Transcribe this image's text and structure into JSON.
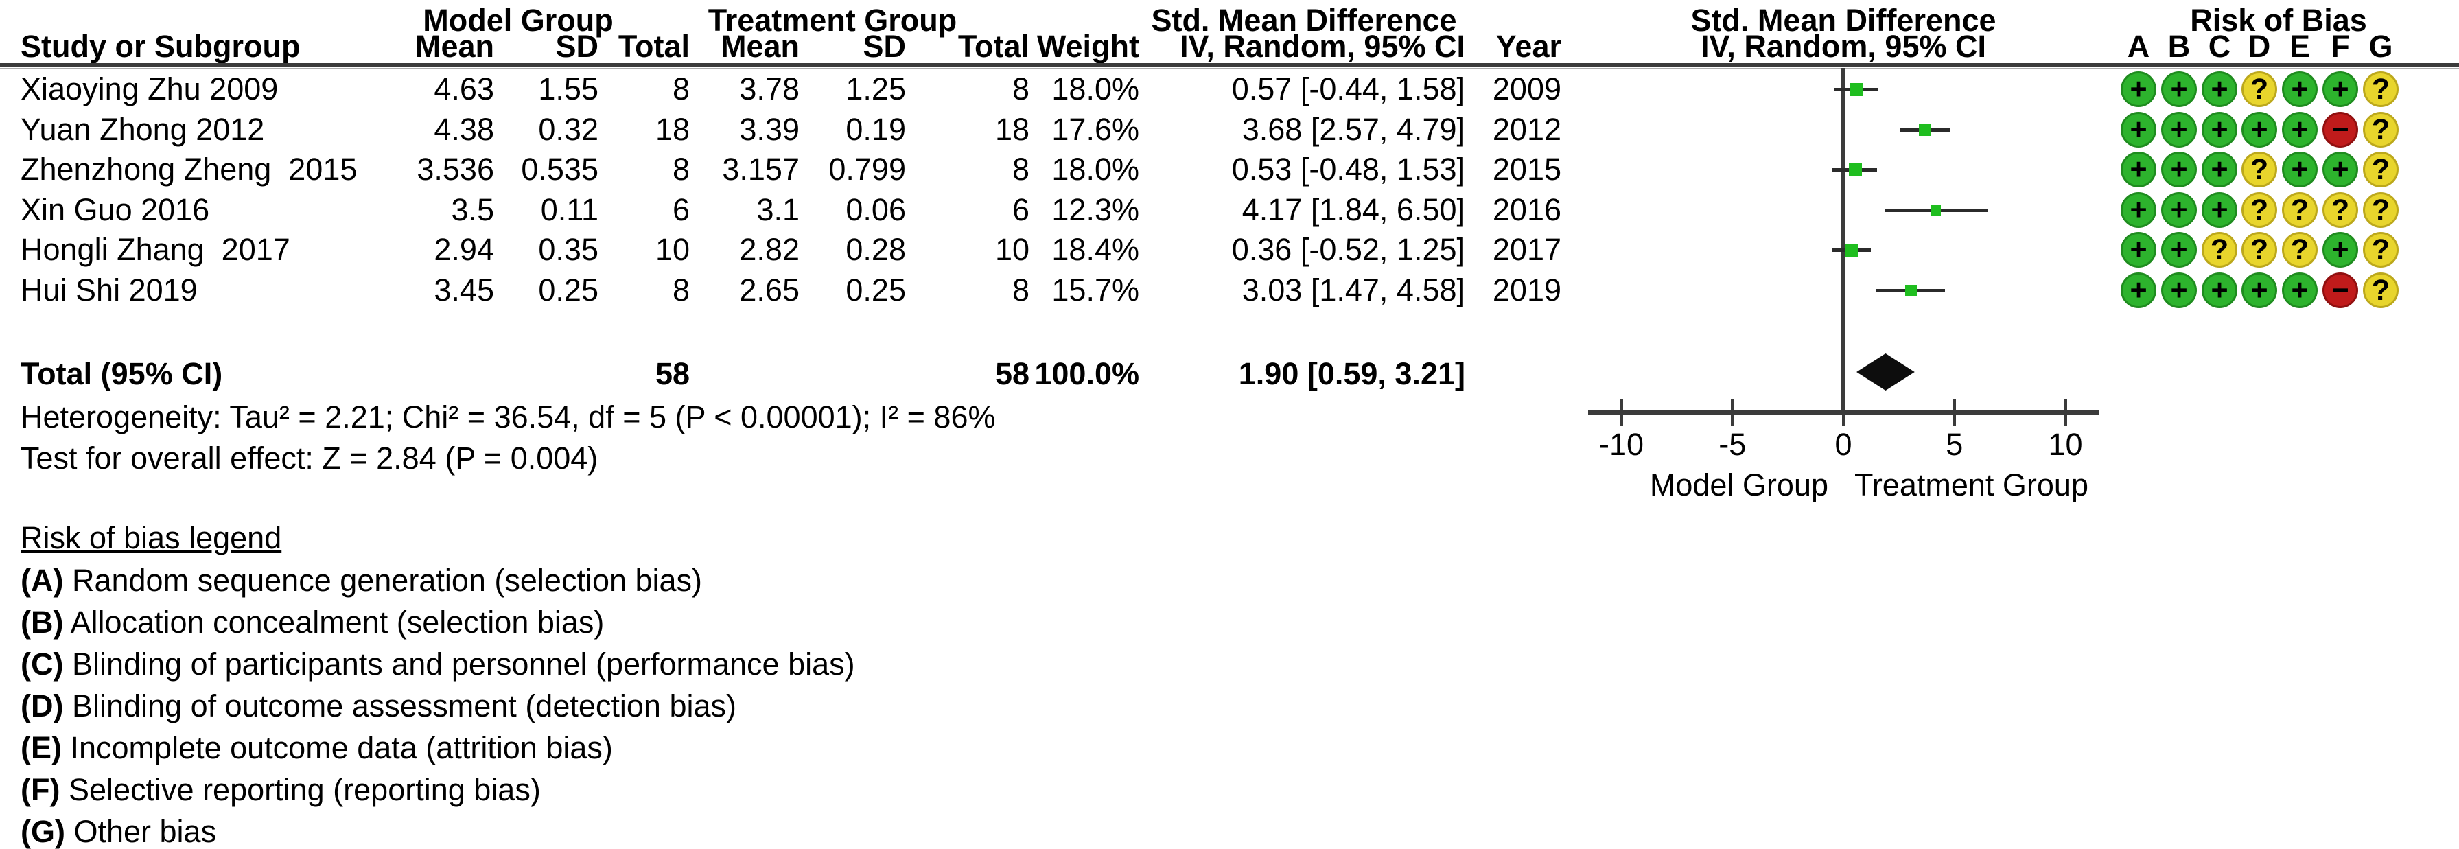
{
  "table": {
    "group_headers": {
      "model": "Model Group",
      "treatment": "Treatment Group",
      "smd": "Std. Mean Difference"
    },
    "column_headers": {
      "study": "Study or Subgroup",
      "mean_model": "Mean",
      "sd_model": "SD",
      "total_model": "Total",
      "mean_treatment": "Mean",
      "sd_treatment": "SD",
      "total_treatment": "Total",
      "weight": "Weight",
      "iv_random": "IV, Random, 95% CI",
      "year": "Year"
    },
    "rows": [
      {
        "study": "Xiaoying Zhu 2009",
        "m_mean": "4.63",
        "m_sd": "1.55",
        "m_total": "8",
        "t_mean": "3.78",
        "t_sd": "1.25",
        "t_total": "8",
        "weight": "18.0%",
        "ci": "0.57 [-0.44, 1.58]",
        "year": "2009"
      },
      {
        "study": "Yuan Zhong 2012",
        "m_mean": "4.38",
        "m_sd": "0.32",
        "m_total": "18",
        "t_mean": "3.39",
        "t_sd": "0.19",
        "t_total": "18",
        "weight": "17.6%",
        "ci": "3.68 [2.57, 4.79]",
        "year": "2012"
      },
      {
        "study": "Zhenzhong Zheng  2015",
        "m_mean": "3.536",
        "m_sd": "0.535",
        "m_total": "8",
        "t_mean": "3.157",
        "t_sd": "0.799",
        "t_total": "8",
        "weight": "18.0%",
        "ci": "0.53 [-0.48, 1.53]",
        "year": "2015"
      },
      {
        "study": "Xin Guo 2016",
        "m_mean": "3.5",
        "m_sd": "0.11",
        "m_total": "6",
        "t_mean": "3.1",
        "t_sd": "0.06",
        "t_total": "6",
        "weight": "12.3%",
        "ci": "4.17 [1.84, 6.50]",
        "year": "2016"
      },
      {
        "study": "Hongli Zhang  2017",
        "m_mean": "2.94",
        "m_sd": "0.35",
        "m_total": "10",
        "t_mean": "2.82",
        "t_sd": "0.28",
        "t_total": "10",
        "weight": "18.4%",
        "ci": "0.36 [-0.52, 1.25]",
        "year": "2017"
      },
      {
        "study": "Hui Shi 2019",
        "m_mean": "3.45",
        "m_sd": "0.25",
        "m_total": "8",
        "t_mean": "2.65",
        "t_sd": "0.25",
        "t_total": "8",
        "weight": "15.7%",
        "ci": "3.03 [1.47, 4.58]",
        "year": "2019"
      }
    ],
    "total": {
      "label": "Total (95% CI)",
      "m_total": "58",
      "t_total": "58",
      "weight": "100.0%",
      "ci": "1.90 [0.59, 3.21]"
    },
    "heterogeneity": "Heterogeneity: Tau² = 2.21; Chi² = 36.54, df = 5 (P < 0.00001); I² = 86%",
    "overall_effect": "Test for overall effect: Z = 2.84 (P = 0.004)"
  },
  "forest": {
    "header_line1": "Std. Mean Difference",
    "header_line2": "IV, Random, 95% CI",
    "axis_ticks": [
      "-10",
      "-5",
      "0",
      "5",
      "10"
    ],
    "axis_tick_values": [
      -10,
      -5,
      0,
      5,
      10
    ],
    "axis_label_left": "Model Group",
    "axis_label_right": "Treatment Group",
    "points": [
      {
        "est": 0.57,
        "lo": -0.44,
        "hi": 1.58,
        "weight": 18.0
      },
      {
        "est": 3.68,
        "lo": 2.57,
        "hi": 4.79,
        "weight": 17.6
      },
      {
        "est": 0.53,
        "lo": -0.48,
        "hi": 1.53,
        "weight": 18.0
      },
      {
        "est": 4.17,
        "lo": 1.84,
        "hi": 6.5,
        "weight": 12.3
      },
      {
        "est": 0.36,
        "lo": -0.52,
        "hi": 1.25,
        "weight": 18.4
      },
      {
        "est": 3.03,
        "lo": 1.47,
        "hi": 4.58,
        "weight": 15.7
      }
    ],
    "diamond": {
      "est": 1.9,
      "lo": 0.59,
      "hi": 3.21
    }
  },
  "risk_of_bias": {
    "header": "Risk of Bias",
    "columns": [
      "A",
      "B",
      "C",
      "D",
      "E",
      "F",
      "G"
    ],
    "rows": [
      [
        "+",
        "+",
        "+",
        "?",
        "+",
        "+",
        "?"
      ],
      [
        "+",
        "+",
        "+",
        "+",
        "+",
        "−",
        "?"
      ],
      [
        "+",
        "+",
        "+",
        "?",
        "+",
        "+",
        "?"
      ],
      [
        "+",
        "+",
        "+",
        "?",
        "?",
        "?",
        "?"
      ],
      [
        "+",
        "+",
        "?",
        "?",
        "?",
        "+",
        "?"
      ],
      [
        "+",
        "+",
        "+",
        "+",
        "+",
        "−",
        "?"
      ]
    ]
  },
  "legend": {
    "title": "Risk of bias legend",
    "items": [
      {
        "key": "(A)",
        "text": " Random sequence generation (selection bias)"
      },
      {
        "key": "(B)",
        "text": " Allocation concealment (selection bias)"
      },
      {
        "key": "(C)",
        "text": " Blinding of participants and personnel (performance bias)"
      },
      {
        "key": "(D)",
        "text": " Blinding of outcome assessment (detection bias)"
      },
      {
        "key": "(E)",
        "text": " Incomplete outcome data (attrition bias)"
      },
      {
        "key": "(F)",
        "text": " Selective reporting (reporting bias)"
      },
      {
        "key": "(G)",
        "text": " Other bias"
      }
    ]
  },
  "colors": {
    "rob_green": "#2db32d",
    "rob_yellow": "#e8d52c",
    "rob_red": "#c01b1b",
    "square_green": "#1fbe1f",
    "diamond_black": "#0d0d0d",
    "line_gray": "#3b3b3b"
  },
  "chart_data": {
    "type": "scatter",
    "subtype": "forest_plot_meta_analysis",
    "title": "Std. Mean Difference, IV, Random, 95% CI",
    "x_axis": {
      "range": [
        -11.5,
        11.5
      ],
      "ticks": [
        -10,
        -5,
        0,
        5,
        10
      ],
      "label_left_of_zero": "Model Group",
      "label_right_of_zero": "Treatment Group"
    },
    "studies": [
      {
        "name": "Xiaoying Zhu 2009",
        "year": 2009,
        "model": {
          "mean": 4.63,
          "sd": 1.55,
          "total": 8
        },
        "treatment": {
          "mean": 3.78,
          "sd": 1.25,
          "total": 8
        },
        "weight_pct": 18.0,
        "smd": 0.57,
        "ci_low": -0.44,
        "ci_high": 1.58,
        "risk_of_bias": [
          "+",
          "+",
          "+",
          "?",
          "+",
          "+",
          "?"
        ]
      },
      {
        "name": "Yuan Zhong 2012",
        "year": 2012,
        "model": {
          "mean": 4.38,
          "sd": 0.32,
          "total": 18
        },
        "treatment": {
          "mean": 3.39,
          "sd": 0.19,
          "total": 18
        },
        "weight_pct": 17.6,
        "smd": 3.68,
        "ci_low": 2.57,
        "ci_high": 4.79,
        "risk_of_bias": [
          "+",
          "+",
          "+",
          "+",
          "+",
          "−",
          "?"
        ]
      },
      {
        "name": "Zhenzhong Zheng 2015",
        "year": 2015,
        "model": {
          "mean": 3.536,
          "sd": 0.535,
          "total": 8
        },
        "treatment": {
          "mean": 3.157,
          "sd": 0.799,
          "total": 8
        },
        "weight_pct": 18.0,
        "smd": 0.53,
        "ci_low": -0.48,
        "ci_high": 1.53,
        "risk_of_bias": [
          "+",
          "+",
          "+",
          "?",
          "+",
          "+",
          "?"
        ]
      },
      {
        "name": "Xin Guo 2016",
        "year": 2016,
        "model": {
          "mean": 3.5,
          "sd": 0.11,
          "total": 6
        },
        "treatment": {
          "mean": 3.1,
          "sd": 0.06,
          "total": 6
        },
        "weight_pct": 12.3,
        "smd": 4.17,
        "ci_low": 1.84,
        "ci_high": 6.5,
        "risk_of_bias": [
          "+",
          "+",
          "+",
          "?",
          "?",
          "?",
          "?"
        ]
      },
      {
        "name": "Hongli Zhang 2017",
        "year": 2017,
        "model": {
          "mean": 2.94,
          "sd": 0.35,
          "total": 10
        },
        "treatment": {
          "mean": 2.82,
          "sd": 0.28,
          "total": 10
        },
        "weight_pct": 18.4,
        "smd": 0.36,
        "ci_low": -0.52,
        "ci_high": 1.25,
        "risk_of_bias": [
          "+",
          "+",
          "?",
          "?",
          "?",
          "+",
          "?"
        ]
      },
      {
        "name": "Hui Shi 2019",
        "year": 2019,
        "model": {
          "mean": 3.45,
          "sd": 0.25,
          "total": 8
        },
        "treatment": {
          "mean": 2.65,
          "sd": 0.25,
          "total": 8
        },
        "weight_pct": 15.7,
        "smd": 3.03,
        "ci_low": 1.47,
        "ci_high": 4.58,
        "risk_of_bias": [
          "+",
          "+",
          "+",
          "+",
          "+",
          "−",
          "?"
        ]
      }
    ],
    "total": {
      "label": "Total (95% CI)",
      "model_total": 58,
      "treatment_total": 58,
      "weight_pct": 100.0,
      "smd": 1.9,
      "ci_low": 0.59,
      "ci_high": 3.21
    },
    "heterogeneity": {
      "tau2": 2.21,
      "chi2": 36.54,
      "df": 5,
      "p": "< 0.00001",
      "i2_pct": 86
    },
    "overall_effect": {
      "z": 2.84,
      "p": 0.004
    }
  }
}
